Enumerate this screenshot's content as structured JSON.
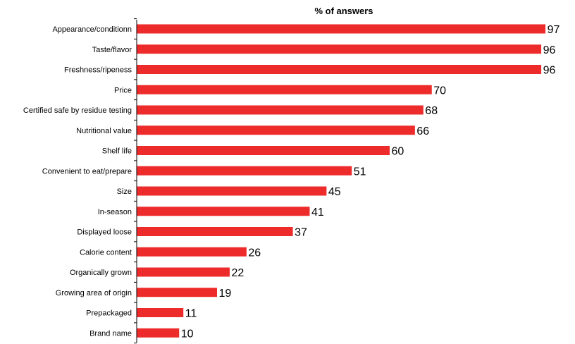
{
  "chart_data": {
    "type": "bar",
    "orientation": "horizontal",
    "title": "% of answers",
    "categories": [
      "Appearance/conditionn",
      "Taste/flavor",
      "Freshness/ripeness",
      "Price",
      "Certified safe by residue testing",
      "Nutritional value",
      "Shelf life",
      "Convenient to eat/prepare",
      "Size",
      "In-season",
      "Displayed loose",
      "Calorie content",
      "Organically grown",
      "Growing area of origin",
      "Prepackaged",
      "Brand name"
    ],
    "values": [
      97,
      96,
      96,
      70,
      68,
      66,
      60,
      51,
      45,
      41,
      37,
      26,
      22,
      19,
      11,
      10
    ],
    "xlim": [
      0,
      100
    ],
    "grid": false,
    "legend": "none",
    "bar_color": "#ee2b2b",
    "axis_color": "#000000"
  }
}
